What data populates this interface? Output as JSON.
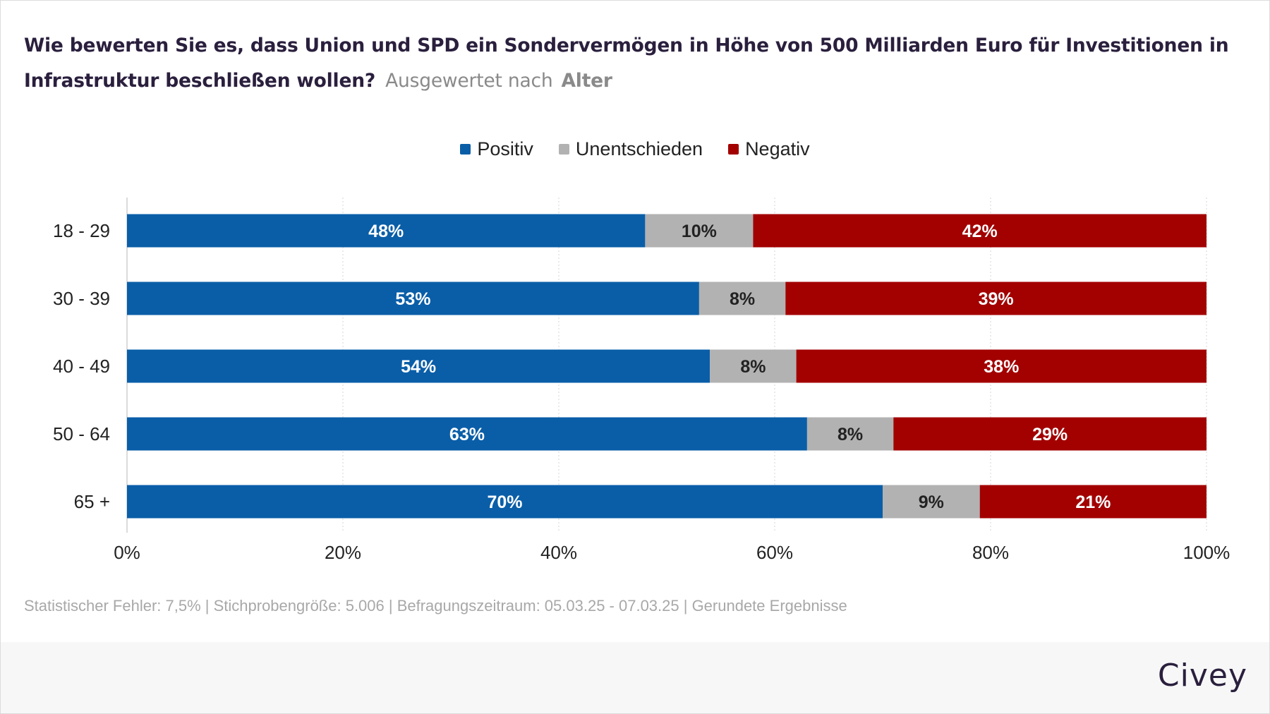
{
  "title": {
    "question": "Wie bewerten Sie es, dass Union und SPD ein Sondervermögen in Höhe von 500 Milliarden Euro für Investitionen in Infrastruktur beschließen wollen?",
    "breakdown_prefix": "Ausgewertet nach",
    "breakdown_key": "Alter"
  },
  "colors": {
    "positive": "#0a5ea8",
    "undecided": "#b2b2b2",
    "negative": "#a30000",
    "title": "#2a1f3d"
  },
  "chart_data": {
    "type": "bar",
    "orientation": "horizontal",
    "stacked": true,
    "categories": [
      "18 - 29",
      "30 - 39",
      "40 - 49",
      "50 - 64",
      "65 +"
    ],
    "series": [
      {
        "name": "Positiv",
        "color": "#0a5ea8",
        "values": [
          48,
          53,
          54,
          63,
          70
        ],
        "labels": [
          "48%",
          "53%",
          "54%",
          "63%",
          "70%"
        ]
      },
      {
        "name": "Unentschieden",
        "color": "#b2b2b2",
        "values": [
          10,
          8,
          8,
          8,
          9
        ],
        "labels": [
          "10%",
          "8%",
          "8%",
          "8%",
          "9%"
        ]
      },
      {
        "name": "Negativ",
        "color": "#a30000",
        "values": [
          42,
          39,
          38,
          29,
          21
        ],
        "labels": [
          "42%",
          "39%",
          "38%",
          "29%",
          "21%"
        ]
      }
    ],
    "xlim": [
      0,
      100
    ],
    "xticks": [
      0,
      20,
      40,
      60,
      80,
      100
    ],
    "xtick_labels": [
      "0%",
      "20%",
      "40%",
      "60%",
      "80%",
      "100%"
    ],
    "grid": true,
    "legend_position": "top-center"
  },
  "footnote": "Statistischer Fehler: 7,5% | Stichprobengröße: 5.006 | Befragungszeitraum: 05.03.25 - 07.03.25 | Gerundete Ergebnisse",
  "brand": "Civey"
}
